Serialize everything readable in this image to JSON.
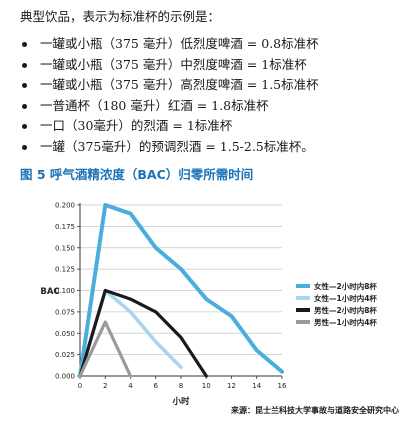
{
  "intro": "典型饮品，表示为标准杯的示例是：",
  "drinks": [
    "一罐或小瓶（375 毫升）低烈度啤酒 = 0.8标准杯",
    "一罐或小瓶（375 毫升）中烈度啤酒 = 1标准杯",
    "一罐或小瓶（375 毫升）高烈度啤酒 = 1.5标准杯",
    "一普通杯（180 毫升）红酒 = 1.8标准杯",
    "一口（30毫升）的烈酒 = 1标准杯",
    "一罐（375毫升）的预调烈酒 = 1.5-2.5标准杯。"
  ],
  "figure_title": "图 5  呼气酒精浓度（BAC）归零所需时间",
  "source": "来源：昆士兰科技大学事故与道路安全研究中心",
  "colors": {
    "series": [
      "#4aaedc",
      "#a9d6ee",
      "#1a1a1a",
      "#9a9a9a"
    ],
    "grid": "#c8c8c8",
    "axis": "#333333",
    "title": "#1a73b8"
  },
  "chart_data": {
    "type": "line",
    "ylabel": "BAC",
    "xlabel": "小时",
    "xlim": [
      0,
      16
    ],
    "ylim": [
      0,
      0.2
    ],
    "x_ticks": [
      "0",
      "2",
      "4",
      "6",
      "8",
      "10",
      "12",
      "14",
      "16"
    ],
    "y_ticks": [
      "0.000",
      "0.025",
      "0.050",
      "0.075",
      "0.100",
      "0.125",
      "0.150",
      "0.175",
      "0.200"
    ],
    "grid": "horizontal",
    "legend_position": "right",
    "series": [
      {
        "name": "女性—2小时内8杯",
        "x": [
          0,
          2,
          4,
          6,
          8,
          10,
          12,
          14,
          16
        ],
        "y": [
          0,
          0.2,
          0.19,
          0.15,
          0.125,
          0.09,
          0.07,
          0.03,
          0.005
        ]
      },
      {
        "name": "女性—1小时内4杯",
        "x": [
          0,
          2,
          4,
          6,
          8
        ],
        "y": [
          0,
          0.1,
          0.075,
          0.04,
          0.01
        ]
      },
      {
        "name": "男性—2小时内8杯",
        "x": [
          0,
          2,
          4,
          6,
          8,
          10
        ],
        "y": [
          0,
          0.1,
          0.09,
          0.075,
          0.045,
          0
        ]
      },
      {
        "name": "男性—1小时内4杯",
        "x": [
          0,
          2,
          4
        ],
        "y": [
          0,
          0.063,
          0
        ]
      }
    ]
  }
}
